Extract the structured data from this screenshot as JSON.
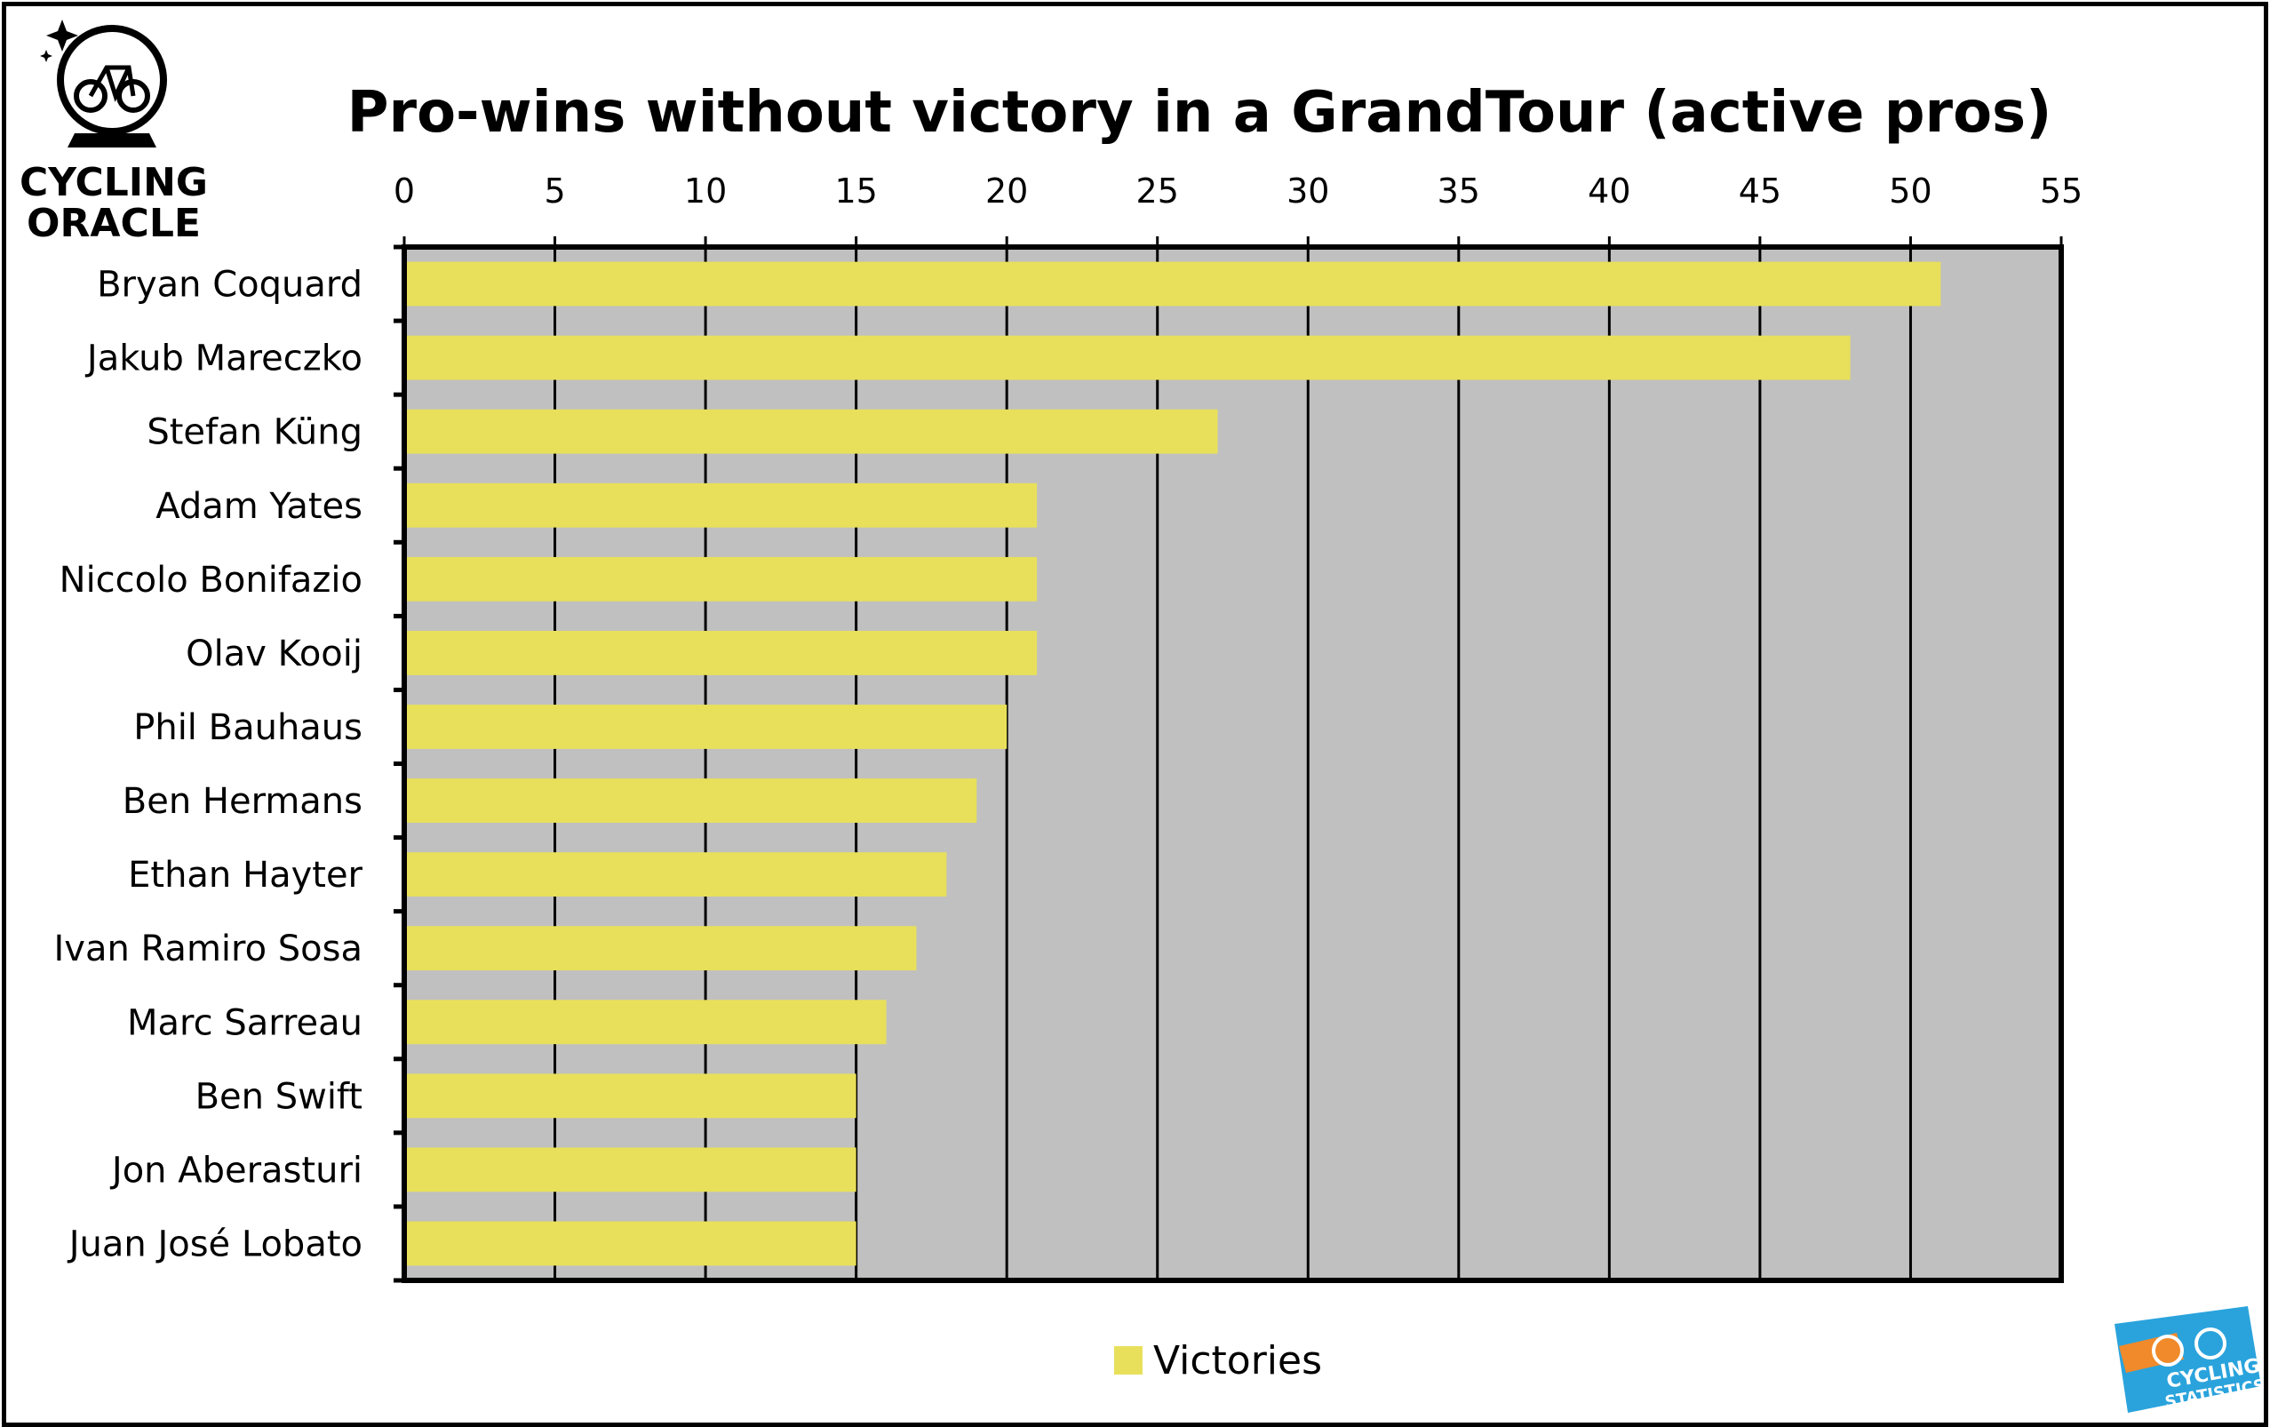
{
  "chart_data": {
    "type": "bar",
    "orientation": "horizontal",
    "title": "Pro-wins without victory in a GrandTour (active pros)",
    "categories": [
      "Bryan Coquard",
      "Jakub Mareczko",
      "Stefan Küng",
      "Adam Yates",
      "Niccolo Bonifazio",
      "Olav Kooij",
      "Phil Bauhaus",
      "Ben Hermans",
      "Ethan Hayter",
      "Ivan Ramiro Sosa",
      "Marc Sarreau",
      "Ben Swift",
      "Jon Aberasturi",
      "Juan José Lobato"
    ],
    "series": [
      {
        "name": "Victories",
        "values": [
          51,
          48,
          27,
          21,
          21,
          21,
          20,
          19,
          18,
          17,
          16,
          15,
          15,
          15
        ],
        "color": "#e8e05a"
      }
    ],
    "xlim": [
      0,
      55
    ],
    "xticks": [
      "0",
      "5",
      "10",
      "15",
      "20",
      "25",
      "30",
      "35",
      "40",
      "45",
      "50",
      "55"
    ],
    "x_axis_position": "top",
    "grid": "vertical",
    "plot_background": "#c0c0c0",
    "legend": "bottom"
  },
  "logos": {
    "top_left_line1": "CYCLING",
    "top_left_line2": "ORACLE",
    "bottom_right_line1": "CYCLING",
    "bottom_right_line2": "STATISTICS"
  }
}
